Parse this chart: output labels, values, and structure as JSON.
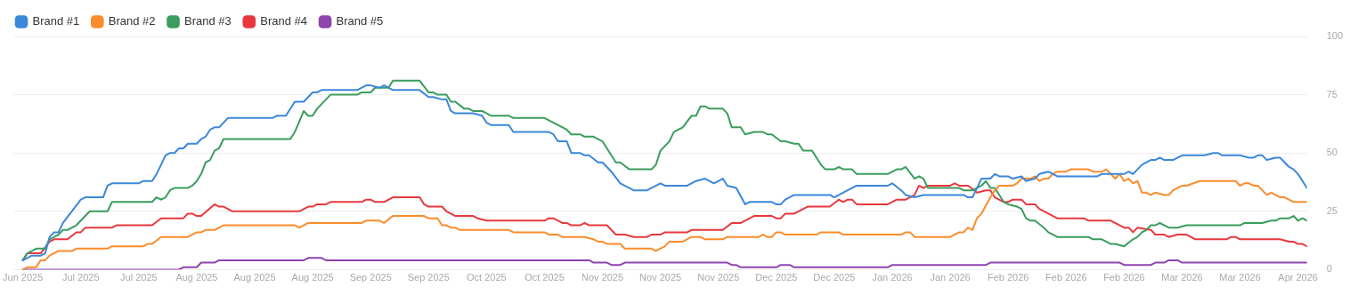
{
  "chart_data": {
    "type": "line",
    "legend": "top left",
    "grid": "y",
    "marker": "none",
    "line_style": "solid",
    "xlim": [
      "2025-06-23",
      "2026-04-09"
    ],
    "xticks": [
      {
        "value": "2025-06-25",
        "label": "Jun 2025"
      },
      {
        "value": "2025-07-08",
        "label": "Jul 2025"
      },
      {
        "value": "2025-07-21",
        "label": "Jul 2025"
      },
      {
        "value": "2025-08-03",
        "label": "Aug 2025"
      },
      {
        "value": "2025-08-16",
        "label": "Aug 2025"
      },
      {
        "value": "2025-08-29",
        "label": "Aug 2025"
      },
      {
        "value": "2025-09-11",
        "label": "Sep 2025"
      },
      {
        "value": "2025-09-24",
        "label": "Sep 2025"
      },
      {
        "value": "2025-10-07",
        "label": "Oct 2025"
      },
      {
        "value": "2025-10-20",
        "label": "Oct 2025"
      },
      {
        "value": "2025-11-02",
        "label": "Nov 2025"
      },
      {
        "value": "2025-11-15",
        "label": "Nov 2025"
      },
      {
        "value": "2025-11-28",
        "label": "Nov 2025"
      },
      {
        "value": "2025-12-11",
        "label": "Dec 2025"
      },
      {
        "value": "2025-12-24",
        "label": "Dec 2025"
      },
      {
        "value": "2026-01-06",
        "label": "Jan 2026"
      },
      {
        "value": "2026-01-19",
        "label": "Jan 2026"
      },
      {
        "value": "2026-02-01",
        "label": "Feb 2026"
      },
      {
        "value": "2026-02-14",
        "label": "Feb 2026"
      },
      {
        "value": "2026-02-27",
        "label": "Feb 2026"
      },
      {
        "value": "2026-03-12",
        "label": "Mar 2026"
      },
      {
        "value": "2026-03-25",
        "label": "Mar 2026"
      },
      {
        "value": "2026-04-07",
        "label": "Apr 2026"
      }
    ],
    "ylim": [
      0,
      100
    ],
    "yticks": [
      0,
      25,
      50,
      75,
      100
    ],
    "series": [
      {
        "name": "Brand #1",
        "color": "#3b87d9",
        "x": [
          "2025-06-25",
          "2025-06-26",
          "2025-06-27",
          "2025-06-29",
          "2025-06-30",
          "2025-07-01",
          "2025-07-02",
          "2025-07-03",
          "2025-07-04",
          "2025-07-08",
          "2025-07-09",
          "2025-07-13",
          "2025-07-14",
          "2025-07-15",
          "2025-07-21",
          "2025-07-22",
          "2025-07-24",
          "2025-07-25",
          "2025-07-27",
          "2025-07-28",
          "2025-07-29",
          "2025-07-30",
          "2025-07-31",
          "2025-08-01",
          "2025-08-03",
          "2025-08-04",
          "2025-08-05",
          "2025-08-06",
          "2025-08-07",
          "2025-08-08",
          "2025-08-10",
          "2025-08-20",
          "2025-08-21",
          "2025-08-23",
          "2025-08-25",
          "2025-08-27",
          "2025-08-29",
          "2025-08-30",
          "2025-08-31",
          "2025-09-08",
          "2025-09-10",
          "2025-09-11",
          "2025-09-13",
          "2025-09-14",
          "2025-09-15",
          "2025-09-16",
          "2025-09-22",
          "2025-09-24",
          "2025-09-25",
          "2025-09-27",
          "2025-09-28",
          "2025-09-29",
          "2025-09-30",
          "2025-10-04",
          "2025-10-06",
          "2025-10-07",
          "2025-10-08",
          "2025-10-12",
          "2025-10-13",
          "2025-10-21",
          "2025-10-22",
          "2025-10-23",
          "2025-10-25",
          "2025-10-26",
          "2025-10-28",
          "2025-10-29",
          "2025-10-30",
          "2025-11-01",
          "2025-11-02",
          "2025-11-03",
          "2025-11-04",
          "2025-11-06",
          "2025-11-09",
          "2025-11-12",
          "2025-11-15",
          "2025-11-16",
          "2025-11-21",
          "2025-11-23",
          "2025-11-25",
          "2025-11-27",
          "2025-11-29",
          "2025-11-30",
          "2025-12-02",
          "2025-12-04",
          "2025-12-05",
          "2025-12-10",
          "2025-12-11",
          "2025-12-12",
          "2025-12-13",
          "2025-12-15",
          "2025-12-23",
          "2025-12-24",
          "2025-12-27",
          "2025-12-29",
          "2026-01-05",
          "2026-01-06",
          "2026-01-08",
          "2026-01-09",
          "2026-01-11",
          "2026-01-13",
          "2026-01-22",
          "2026-01-23",
          "2026-01-24",
          "2026-01-26",
          "2026-01-28",
          "2026-01-29",
          "2026-01-30",
          "2026-02-01",
          "2026-02-02",
          "2026-02-04",
          "2026-02-05",
          "2026-02-07",
          "2026-02-08",
          "2026-02-10",
          "2026-02-12",
          "2026-02-21",
          "2026-02-22",
          "2026-02-27",
          "2026-02-28",
          "2026-03-01",
          "2026-03-03",
          "2026-03-05",
          "2026-03-06",
          "2026-03-07",
          "2026-03-08",
          "2026-03-10",
          "2026-03-11",
          "2026-03-12",
          "2026-03-17",
          "2026-03-19",
          "2026-03-20",
          "2026-03-21",
          "2026-03-25",
          "2026-03-27",
          "2026-03-28",
          "2026-03-29",
          "2026-03-30",
          "2026-03-31",
          "2026-04-02",
          "2026-04-03",
          "2026-04-05",
          "2026-04-06",
          "2026-04-07",
          "2026-04-09"
        ],
        "values": [
          4,
          5,
          6,
          6,
          7,
          14,
          16,
          16,
          20,
          30,
          31,
          31,
          36,
          37,
          37,
          38,
          38,
          41,
          49,
          50,
          50,
          52,
          52,
          54,
          54,
          56,
          57,
          60,
          61,
          61,
          65,
          65,
          66,
          66,
          72,
          72,
          76,
          76,
          77,
          77,
          79,
          79,
          78,
          79,
          78,
          77,
          77,
          74,
          74,
          73,
          73,
          68,
          67,
          67,
          66,
          63,
          62,
          62,
          59,
          59,
          58,
          55,
          55,
          50,
          50,
          49,
          49,
          46,
          46,
          44,
          42,
          37,
          34,
          34,
          37,
          36,
          36,
          38,
          39,
          37,
          39,
          36,
          35,
          28,
          29,
          29,
          28,
          28,
          30,
          32,
          32,
          31,
          34,
          36,
          36,
          37,
          34,
          32,
          31,
          32,
          32,
          31,
          31,
          39,
          39,
          41,
          40,
          40,
          39,
          40,
          38,
          39,
          41,
          42,
          40,
          40,
          41,
          41,
          42,
          41,
          45,
          47,
          47,
          48,
          47,
          47,
          48,
          49,
          49,
          50,
          50,
          49,
          49,
          48,
          48,
          49,
          49,
          47,
          48,
          48,
          44,
          43,
          41,
          35
        ]
      },
      {
        "name": "Brand #2",
        "color": "#fb8c2c",
        "x": [
          "2025-06-25",
          "2025-06-26",
          "2025-06-28",
          "2025-06-29",
          "2025-06-30",
          "2025-07-01",
          "2025-07-03",
          "2025-07-06",
          "2025-07-07",
          "2025-07-14",
          "2025-07-15",
          "2025-07-22",
          "2025-07-23",
          "2025-07-24",
          "2025-07-26",
          "2025-08-01",
          "2025-08-03",
          "2025-08-04",
          "2025-08-05",
          "2025-08-07",
          "2025-08-09",
          "2025-08-25",
          "2025-08-26",
          "2025-08-28",
          "2025-09-09",
          "2025-09-10",
          "2025-09-13",
          "2025-09-14",
          "2025-09-16",
          "2025-09-23",
          "2025-09-24",
          "2025-09-26",
          "2025-09-27",
          "2025-09-28",
          "2025-09-29",
          "2025-09-30",
          "2025-10-01",
          "2025-10-12",
          "2025-10-13",
          "2025-10-20",
          "2025-10-21",
          "2025-10-23",
          "2025-10-24",
          "2025-10-29",
          "2025-10-31",
          "2025-11-01",
          "2025-11-02",
          "2025-11-03",
          "2025-11-06",
          "2025-11-07",
          "2025-11-13",
          "2025-11-14",
          "2025-11-16",
          "2025-11-17",
          "2025-11-20",
          "2025-11-22",
          "2025-11-24",
          "2025-11-25",
          "2025-11-29",
          "2025-11-30",
          "2025-12-07",
          "2025-12-08",
          "2025-12-09",
          "2025-12-10",
          "2025-12-11",
          "2025-12-12",
          "2025-12-13",
          "2025-12-20",
          "2025-12-21",
          "2025-12-25",
          "2025-12-26",
          "2026-01-08",
          "2026-01-09",
          "2026-01-10",
          "2026-01-11",
          "2026-01-19",
          "2026-01-21",
          "2026-01-22",
          "2026-01-23",
          "2026-01-24",
          "2026-01-25",
          "2026-01-26",
          "2026-01-28",
          "2026-01-29",
          "2026-01-30",
          "2026-02-02",
          "2026-02-03",
          "2026-02-04",
          "2026-02-06",
          "2026-02-07",
          "2026-02-08",
          "2026-02-09",
          "2026-02-10",
          "2026-02-11",
          "2026-02-12",
          "2026-02-14",
          "2026-02-15",
          "2026-02-19",
          "2026-02-20",
          "2026-02-22",
          "2026-02-23",
          "2026-02-25",
          "2026-02-26",
          "2026-02-27",
          "2026-02-28",
          "2026-03-01",
          "2026-03-02",
          "2026-03-03",
          "2026-03-04",
          "2026-03-05",
          "2026-03-06",
          "2026-03-08",
          "2026-03-09",
          "2026-03-10",
          "2026-03-12",
          "2026-03-13",
          "2026-03-16",
          "2026-03-24",
          "2026-03-25",
          "2026-03-26",
          "2026-03-27",
          "2026-03-28",
          "2026-03-29",
          "2026-03-31",
          "2026-04-01",
          "2026-04-03",
          "2026-04-04",
          "2026-04-06",
          "2026-04-09"
        ],
        "values": [
          0,
          1,
          1,
          4,
          4,
          6,
          8,
          8,
          9,
          9,
          10,
          10,
          11,
          11,
          14,
          14,
          16,
          16,
          17,
          17,
          19,
          19,
          18,
          20,
          20,
          21,
          21,
          20,
          23,
          23,
          22,
          22,
          19,
          19,
          18,
          18,
          17,
          17,
          16,
          16,
          15,
          15,
          14,
          14,
          13,
          12,
          12,
          11,
          11,
          9,
          9,
          8,
          10,
          12,
          12,
          14,
          14,
          13,
          13,
          14,
          14,
          15,
          14,
          14,
          16,
          16,
          15,
          15,
          16,
          16,
          15,
          15,
          16,
          16,
          14,
          14,
          16,
          16,
          18,
          17,
          22,
          24,
          31,
          34,
          36,
          36,
          37,
          39,
          39,
          40,
          38,
          39,
          39,
          41,
          42,
          42,
          43,
          43,
          42,
          42,
          43,
          39,
          41,
          38,
          39,
          37,
          38,
          33,
          33,
          32,
          33,
          32,
          32,
          34,
          36,
          36,
          38,
          38,
          36,
          37,
          37,
          36,
          36,
          32,
          33,
          31,
          31,
          29,
          29
        ]
      },
      {
        "name": "Brand #3",
        "color": "#3a9d5d",
        "x": [
          "2025-06-25",
          "2025-06-26",
          "2025-06-28",
          "2025-06-30",
          "2025-07-01",
          "2025-07-03",
          "2025-07-04",
          "2025-07-05",
          "2025-07-07",
          "2025-07-09",
          "2025-07-10",
          "2025-07-14",
          "2025-07-15",
          "2025-07-16",
          "2025-07-24",
          "2025-07-25",
          "2025-07-26",
          "2025-07-27",
          "2025-07-28",
          "2025-07-29",
          "2025-08-01",
          "2025-08-02",
          "2025-08-03",
          "2025-08-04",
          "2025-08-05",
          "2025-08-06",
          "2025-08-07",
          "2025-08-08",
          "2025-08-09",
          "2025-08-24",
          "2025-08-25",
          "2025-08-27",
          "2025-08-28",
          "2025-08-29",
          "2025-08-30",
          "2025-09-02",
          "2025-09-08",
          "2025-09-09",
          "2025-09-11",
          "2025-09-12",
          "2025-09-15",
          "2025-09-16",
          "2025-09-22",
          "2025-09-24",
          "2025-09-25",
          "2025-09-26",
          "2025-09-28",
          "2025-09-29",
          "2025-09-30",
          "2025-10-02",
          "2025-10-03",
          "2025-10-04",
          "2025-10-06",
          "2025-10-08",
          "2025-10-12",
          "2025-10-13",
          "2025-10-20",
          "2025-10-25",
          "2025-10-26",
          "2025-10-28",
          "2025-10-29",
          "2025-10-31",
          "2025-11-02",
          "2025-11-05",
          "2025-11-06",
          "2025-11-08",
          "2025-11-13",
          "2025-11-14",
          "2025-11-15",
          "2025-11-17",
          "2025-11-18",
          "2025-11-20",
          "2025-11-22",
          "2025-11-23",
          "2025-11-24",
          "2025-11-25",
          "2025-11-26",
          "2025-11-29",
          "2025-11-30",
          "2025-12-01",
          "2025-12-03",
          "2025-12-04",
          "2025-12-06",
          "2025-12-08",
          "2025-12-09",
          "2025-12-10",
          "2025-12-12",
          "2025-12-13",
          "2025-12-15",
          "2025-12-16",
          "2025-12-17",
          "2025-12-19",
          "2025-12-21",
          "2025-12-22",
          "2025-12-24",
          "2025-12-25",
          "2025-12-26",
          "2025-12-28",
          "2025-12-29",
          "2026-01-05",
          "2026-01-07",
          "2026-01-08",
          "2026-01-09",
          "2026-01-11",
          "2026-01-12",
          "2026-01-13",
          "2026-01-14",
          "2026-01-21",
          "2026-01-22",
          "2026-01-24",
          "2026-01-26",
          "2026-01-27",
          "2026-01-28",
          "2026-01-29",
          "2026-01-31",
          "2026-02-01",
          "2026-02-03",
          "2026-02-04",
          "2026-02-05",
          "2026-02-06",
          "2026-02-07",
          "2026-02-09",
          "2026-02-10",
          "2026-02-12",
          "2026-02-19",
          "2026-02-20",
          "2026-02-22",
          "2026-02-24",
          "2026-02-25",
          "2026-02-27",
          "2026-03-01",
          "2026-03-02",
          "2026-03-03",
          "2026-03-04",
          "2026-03-05",
          "2026-03-06",
          "2026-03-07",
          "2026-03-09",
          "2026-03-11",
          "2026-03-13",
          "2026-03-25",
          "2026-03-26",
          "2026-03-30",
          "2026-04-01",
          "2026-04-02",
          "2026-04-03",
          "2026-04-05",
          "2026-04-06",
          "2026-04-07",
          "2026-04-08",
          "2026-04-09"
        ],
        "values": [
          4,
          7,
          9,
          9,
          13,
          15,
          17,
          17,
          19,
          23,
          25,
          25,
          29,
          29,
          29,
          31,
          30,
          31,
          34,
          35,
          35,
          36,
          38,
          41,
          46,
          47,
          51,
          52,
          56,
          56,
          59,
          68,
          66,
          66,
          69,
          75,
          75,
          76,
          76,
          78,
          78,
          81,
          81,
          76,
          76,
          75,
          75,
          72,
          72,
          69,
          69,
          68,
          68,
          66,
          66,
          65,
          65,
          60,
          58,
          58,
          57,
          57,
          55,
          46,
          46,
          43,
          43,
          45,
          51,
          55,
          59,
          61,
          66,
          66,
          70,
          70,
          69,
          69,
          67,
          61,
          61,
          58,
          59,
          59,
          58,
          58,
          55,
          55,
          54,
          54,
          51,
          51,
          45,
          43,
          43,
          44,
          43,
          43,
          41,
          41,
          43,
          43,
          44,
          39,
          40,
          39,
          35,
          35,
          34,
          34,
          36,
          38,
          35,
          35,
          29,
          28,
          27,
          26,
          22,
          21,
          21,
          18,
          16,
          14,
          14,
          13,
          13,
          11,
          11,
          10,
          13,
          14,
          16,
          17,
          19,
          19,
          20,
          18,
          18,
          19,
          19,
          20,
          20,
          21,
          21,
          22,
          22,
          23,
          21,
          22,
          21
        ]
      },
      {
        "name": "Brand #4",
        "color": "#e8383d",
        "x": [
          "2025-06-25",
          "2025-06-26",
          "2025-06-29",
          "2025-07-01",
          "2025-07-02",
          "2025-07-05",
          "2025-07-07",
          "2025-07-08",
          "2025-07-09",
          "2025-07-15",
          "2025-07-16",
          "2025-07-24",
          "2025-07-26",
          "2025-07-31",
          "2025-08-01",
          "2025-08-02",
          "2025-08-03",
          "2025-08-04",
          "2025-08-07",
          "2025-08-08",
          "2025-08-09",
          "2025-08-11",
          "2025-08-26",
          "2025-08-28",
          "2025-08-29",
          "2025-08-30",
          "2025-09-01",
          "2025-09-02",
          "2025-09-09",
          "2025-09-10",
          "2025-09-11",
          "2025-09-12",
          "2025-09-14",
          "2025-09-16",
          "2025-09-22",
          "2025-09-23",
          "2025-09-24",
          "2025-09-27",
          "2025-09-28",
          "2025-09-30",
          "2025-10-04",
          "2025-10-05",
          "2025-10-07",
          "2025-10-20",
          "2025-10-21",
          "2025-10-22",
          "2025-10-24",
          "2025-10-25",
          "2025-10-26",
          "2025-10-28",
          "2025-10-29",
          "2025-10-30",
          "2025-11-03",
          "2025-11-05",
          "2025-11-07",
          "2025-11-09",
          "2025-11-12",
          "2025-11-13",
          "2025-11-15",
          "2025-11-16",
          "2025-11-21",
          "2025-11-22",
          "2025-11-29",
          "2025-12-01",
          "2025-12-03",
          "2025-12-06",
          "2025-12-10",
          "2025-12-11",
          "2025-12-12",
          "2025-12-13",
          "2025-12-15",
          "2025-12-18",
          "2025-12-23",
          "2025-12-25",
          "2025-12-26",
          "2025-12-27",
          "2025-12-28",
          "2025-12-29",
          "2026-01-05",
          "2026-01-07",
          "2026-01-09",
          "2026-01-11",
          "2026-01-12",
          "2026-01-13",
          "2026-01-14",
          "2026-01-19",
          "2026-01-20",
          "2026-01-21",
          "2026-01-23",
          "2026-01-25",
          "2026-01-27",
          "2026-01-28",
          "2026-01-29",
          "2026-01-31",
          "2026-02-01",
          "2026-02-02",
          "2026-02-04",
          "2026-02-05",
          "2026-02-07",
          "2026-02-08",
          "2026-02-12",
          "2026-02-18",
          "2026-02-19",
          "2026-02-24",
          "2026-02-27",
          "2026-02-28",
          "2026-03-01",
          "2026-03-02",
          "2026-03-05",
          "2026-03-06",
          "2026-03-08",
          "2026-03-09",
          "2026-03-11",
          "2026-03-13",
          "2026-03-15",
          "2026-03-22",
          "2026-03-23",
          "2026-03-24",
          "2026-03-25",
          "2026-04-03",
          "2026-04-05",
          "2026-04-06",
          "2026-04-07",
          "2026-04-08",
          "2026-04-09"
        ],
        "values": [
          4,
          7,
          7,
          12,
          13,
          13,
          16,
          16,
          18,
          18,
          19,
          19,
          22,
          22,
          24,
          24,
          23,
          23,
          28,
          27,
          27,
          25,
          25,
          27,
          27,
          28,
          28,
          29,
          29,
          30,
          30,
          29,
          29,
          31,
          31,
          28,
          27,
          27,
          25,
          23,
          23,
          22,
          21,
          21,
          22,
          22,
          20,
          20,
          19,
          19,
          20,
          19,
          19,
          15,
          15,
          14,
          14,
          15,
          15,
          16,
          16,
          17,
          17,
          20,
          20,
          23,
          23,
          22,
          22,
          24,
          24,
          27,
          27,
          30,
          29,
          30,
          30,
          28,
          28,
          30,
          30,
          32,
          36,
          35,
          36,
          36,
          37,
          36,
          36,
          33,
          34,
          34,
          31,
          29,
          29,
          30,
          30,
          28,
          28,
          26,
          22,
          22,
          21,
          21,
          18,
          18,
          16,
          18,
          17,
          15,
          15,
          14,
          15,
          15,
          13,
          13,
          14,
          14,
          13,
          13,
          12,
          12,
          11,
          11,
          10
        ]
      },
      {
        "name": "Brand #5",
        "color": "#8e44ad",
        "x": [
          "2025-06-25",
          "2025-07-30",
          "2025-07-31",
          "2025-08-03",
          "2025-08-04",
          "2025-08-07",
          "2025-08-08",
          "2025-08-27",
          "2025-08-28",
          "2025-08-31",
          "2025-09-01",
          "2025-10-30",
          "2025-10-31",
          "2025-11-03",
          "2025-11-04",
          "2025-11-06",
          "2025-11-07",
          "2025-11-30",
          "2025-12-01",
          "2025-12-02",
          "2025-12-03",
          "2025-12-11",
          "2025-12-12",
          "2025-12-14",
          "2025-12-15",
          "2026-01-05",
          "2026-01-06",
          "2026-01-27",
          "2026-01-28",
          "2026-02-26",
          "2026-02-27",
          "2026-03-05",
          "2026-03-06",
          "2026-03-08",
          "2026-03-09",
          "2026-03-11",
          "2026-03-12",
          "2026-04-09"
        ],
        "values": [
          0,
          0,
          1,
          1,
          3,
          3,
          4,
          4,
          5,
          5,
          4,
          4,
          3,
          3,
          2,
          2,
          3,
          3,
          2,
          2,
          1,
          1,
          2,
          2,
          1,
          1,
          2,
          2,
          3,
          3,
          2,
          2,
          3,
          3,
          4,
          4,
          3,
          3
        ]
      }
    ]
  }
}
